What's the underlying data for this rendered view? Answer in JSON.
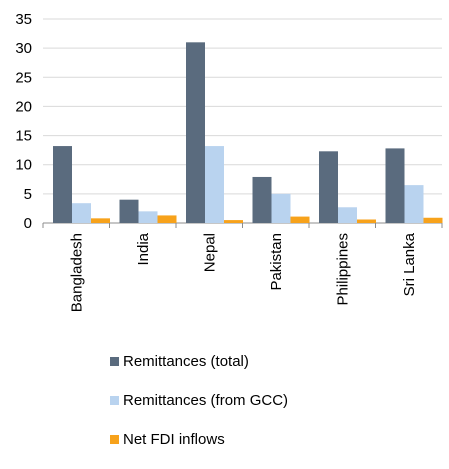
{
  "chart_data": {
    "type": "bar",
    "categories": [
      "Bangladesh",
      "India",
      "Nepal",
      "Pakistan",
      "Philippines",
      "Sri Lanka"
    ],
    "series": [
      {
        "name": "Remittances (total)",
        "values": [
          13.2,
          4.0,
          31.0,
          7.9,
          12.3,
          12.8
        ],
        "color": "#5a6b7e"
      },
      {
        "name": "Remittances (from GCC)",
        "values": [
          3.4,
          2.0,
          13.2,
          5.0,
          2.7,
          6.5
        ],
        "color": "#b9d3ef"
      },
      {
        "name": "Net FDI inflows",
        "values": [
          0.8,
          1.3,
          0.5,
          1.1,
          0.6,
          0.9
        ],
        "color": "#f7a21b"
      }
    ],
    "y_ticks": [
      "0",
      "5",
      "10",
      "15",
      "20",
      "25",
      "30",
      "35"
    ],
    "ylim": [
      0,
      35
    ],
    "grid": true,
    "legend_position": "bottom"
  }
}
